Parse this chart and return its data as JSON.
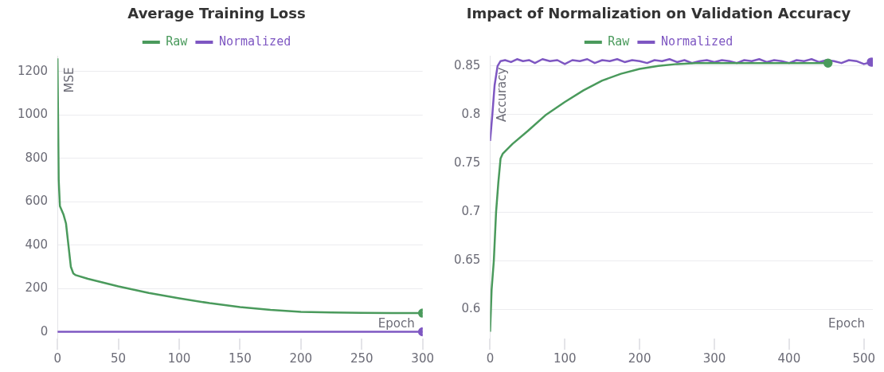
{
  "chart_data": [
    {
      "type": "line",
      "title": "Average Training Loss",
      "xlabel": "Epoch",
      "ylabel": "MSE",
      "xlim": [
        0,
        300
      ],
      "xticks": [
        0,
        50,
        100,
        150,
        200,
        250,
        300
      ],
      "ylim": [
        -30,
        1270
      ],
      "yticks": [
        0,
        200,
        400,
        600,
        800,
        1000,
        1200
      ],
      "grid": "y",
      "legend": "top",
      "series": [
        {
          "name": "Raw",
          "color": "#4a9a5c",
          "x": [
            0,
            1,
            2,
            5,
            7,
            9,
            11,
            13,
            15,
            25,
            50,
            75,
            100,
            125,
            150,
            175,
            200,
            225,
            250,
            275,
            300
          ],
          "values": [
            1260,
            700,
            580,
            540,
            500,
            400,
            300,
            270,
            262,
            245,
            210,
            180,
            155,
            133,
            115,
            102,
            93,
            90,
            88,
            87,
            87
          ]
        },
        {
          "name": "Normalized",
          "color": "#7e57c2",
          "x": [
            0,
            50,
            100,
            150,
            200,
            250,
            300
          ],
          "values": [
            1,
            1,
            1,
            1,
            1,
            1,
            1
          ]
        }
      ]
    },
    {
      "type": "line",
      "title": "Impact of Normalization on Validation Accuracy",
      "xlabel": "Epoch",
      "ylabel": "Accuracy",
      "xlim": [
        0,
        512
      ],
      "xticks": [
        0,
        100,
        200,
        300,
        400,
        500
      ],
      "ylim": [
        0.57,
        0.86
      ],
      "yticks": [
        0.6,
        0.65,
        0.7,
        0.75,
        0.8,
        0.85
      ],
      "grid": "y",
      "legend": "top",
      "series": [
        {
          "name": "Raw",
          "color": "#4a9a5c",
          "x": [
            0,
            2,
            5,
            8,
            11,
            14,
            17,
            30,
            50,
            75,
            100,
            125,
            150,
            175,
            200,
            225,
            250,
            275,
            300,
            350,
            400,
            452
          ],
          "values": [
            0.577,
            0.62,
            0.65,
            0.7,
            0.73,
            0.755,
            0.76,
            0.77,
            0.783,
            0.8,
            0.813,
            0.825,
            0.835,
            0.842,
            0.847,
            0.85,
            0.852,
            0.853,
            0.853,
            0.853,
            0.853,
            0.853
          ]
        },
        {
          "name": "Normalized",
          "color": "#7e57c2",
          "x": [
            0,
            3,
            6,
            10,
            14,
            20,
            28,
            36,
            44,
            52,
            60,
            70,
            80,
            90,
            100,
            110,
            120,
            130,
            140,
            150,
            160,
            170,
            180,
            190,
            200,
            210,
            220,
            230,
            240,
            250,
            260,
            270,
            280,
            290,
            300,
            310,
            320,
            330,
            340,
            350,
            360,
            370,
            380,
            390,
            400,
            410,
            420,
            430,
            440,
            450,
            460,
            470,
            480,
            490,
            500,
            510
          ],
          "values": [
            0.773,
            0.8,
            0.83,
            0.85,
            0.855,
            0.856,
            0.854,
            0.857,
            0.855,
            0.856,
            0.853,
            0.857,
            0.855,
            0.856,
            0.852,
            0.856,
            0.855,
            0.857,
            0.853,
            0.856,
            0.855,
            0.857,
            0.854,
            0.856,
            0.855,
            0.853,
            0.856,
            0.855,
            0.857,
            0.854,
            0.856,
            0.853,
            0.855,
            0.856,
            0.854,
            0.856,
            0.855,
            0.853,
            0.856,
            0.855,
            0.857,
            0.854,
            0.856,
            0.855,
            0.853,
            0.856,
            0.855,
            0.857,
            0.854,
            0.856,
            0.855,
            0.853,
            0.856,
            0.855,
            0.852,
            0.854
          ]
        }
      ]
    }
  ]
}
